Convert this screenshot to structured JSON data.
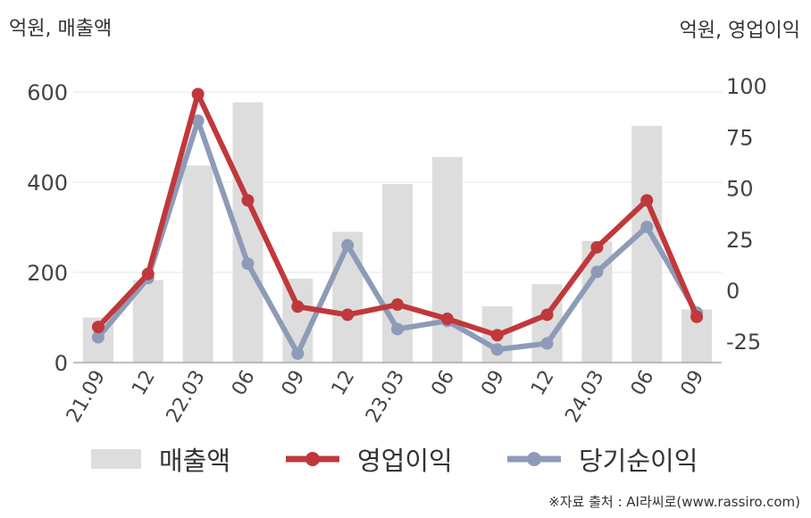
{
  "units": {
    "left": "억원, 매출액",
    "right": "억원, 영업이익"
  },
  "source": "※자료 출처 : AI라씨로(www.rassiro.com)",
  "colors": {
    "bar": "#dddddd",
    "operating": "#c0383b",
    "net": "#8e9bb8",
    "grid": "#e6e6e6",
    "axis": "#aaaaaa",
    "tick_text": "#444444"
  },
  "chart_data": {
    "type": "bar+line",
    "categories": [
      "21.09",
      "12",
      "22.03",
      "06",
      "09",
      "12",
      "23.03",
      "06",
      "09",
      "12",
      "24.03",
      "06",
      "09"
    ],
    "left_axis": {
      "ticks": [
        0,
        200,
        400,
        600
      ],
      "ylim": [
        0,
        600
      ]
    },
    "right_axis": {
      "ticks": [
        -25,
        0,
        25,
        50,
        75,
        100
      ],
      "ylim": [
        -35,
        100
      ]
    },
    "series": [
      {
        "name": "매출액",
        "type": "bar",
        "axis": "left",
        "values": [
          100,
          183,
          437,
          577,
          186,
          290,
          396,
          456,
          125,
          174,
          270,
          525,
          118
        ]
      },
      {
        "name": "영업이익",
        "type": "line",
        "axis": "right",
        "values": [
          -18,
          8,
          96,
          44,
          -8,
          -12,
          -7,
          -14,
          -22,
          -12,
          21,
          44,
          -13
        ]
      },
      {
        "name": "당기순이익",
        "type": "line",
        "axis": "right",
        "values": [
          -23,
          6,
          83,
          13,
          -31,
          22,
          -19,
          -15,
          -29,
          -26,
          9,
          31,
          -11
        ]
      }
    ],
    "grid": true,
    "legend_position": "bottom"
  }
}
